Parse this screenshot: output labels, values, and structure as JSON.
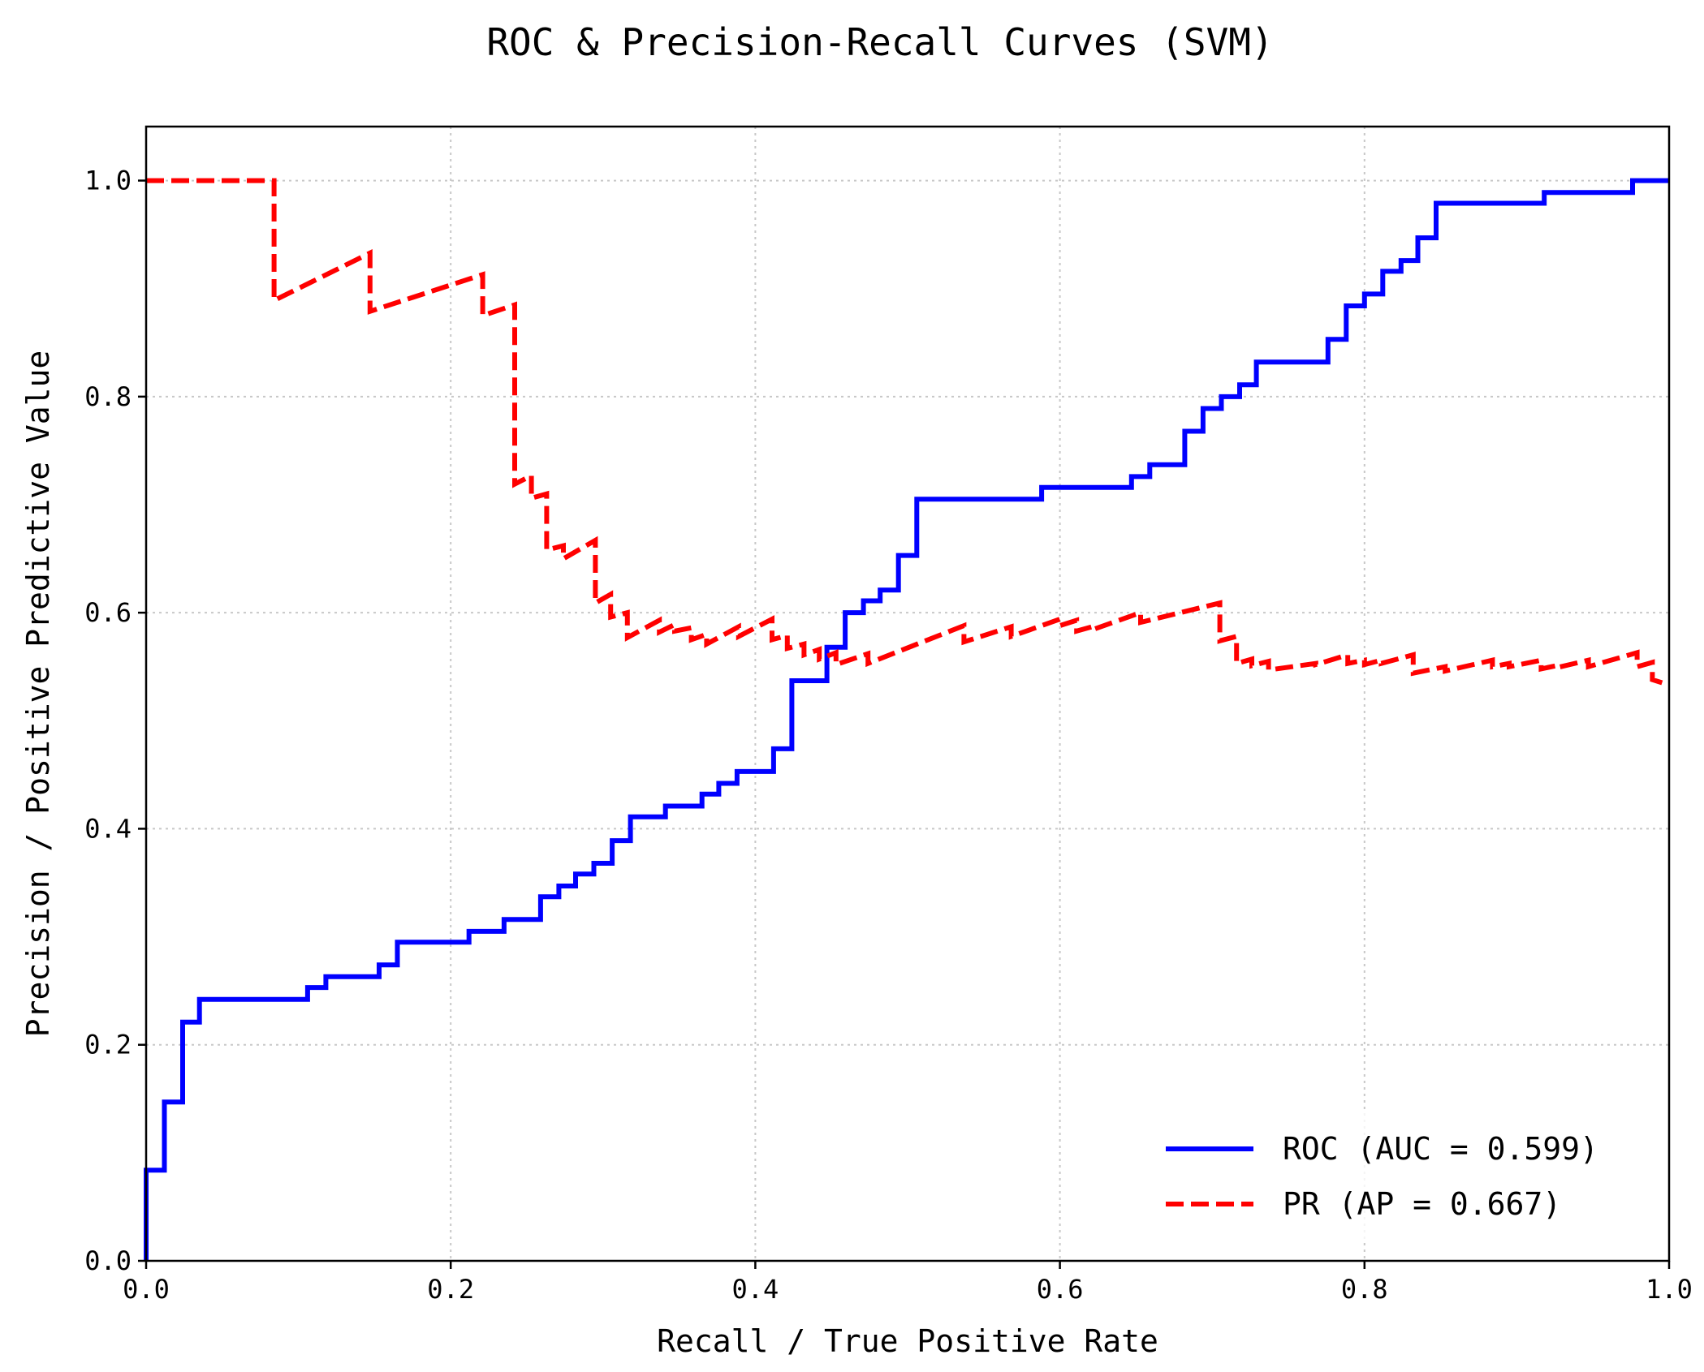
{
  "chart_data": {
    "type": "line",
    "title": "ROC & Precision-Recall Curves (SVM)",
    "xlabel": "Recall / True Positive Rate",
    "ylabel": "Precision / Positive Predictive Value",
    "xlim": [
      0,
      1
    ],
    "ylim": [
      0,
      1.05
    ],
    "xticks": [
      "0.0",
      "0.2",
      "0.4",
      "0.6",
      "0.8",
      "1.0"
    ],
    "yticks": [
      "0.0",
      "0.2",
      "0.4",
      "0.6",
      "0.8",
      "1.0"
    ],
    "grid": true,
    "legend_position": "lower-right",
    "series": [
      {
        "name": "ROC (AUC = 0.599)",
        "color": "#0000ff",
        "style": "solid",
        "points": [
          [
            0.0,
            0.0
          ],
          [
            0.0,
            0.084
          ],
          [
            0.012,
            0.084
          ],
          [
            0.012,
            0.147
          ],
          [
            0.024,
            0.147
          ],
          [
            0.024,
            0.221
          ],
          [
            0.035,
            0.221
          ],
          [
            0.035,
            0.242
          ],
          [
            0.106,
            0.242
          ],
          [
            0.106,
            0.253
          ],
          [
            0.118,
            0.253
          ],
          [
            0.118,
            0.263
          ],
          [
            0.153,
            0.263
          ],
          [
            0.153,
            0.274
          ],
          [
            0.165,
            0.274
          ],
          [
            0.165,
            0.295
          ],
          [
            0.212,
            0.295
          ],
          [
            0.212,
            0.305
          ],
          [
            0.235,
            0.305
          ],
          [
            0.235,
            0.316
          ],
          [
            0.259,
            0.316
          ],
          [
            0.259,
            0.337
          ],
          [
            0.271,
            0.337
          ],
          [
            0.271,
            0.347
          ],
          [
            0.282,
            0.347
          ],
          [
            0.282,
            0.358
          ],
          [
            0.294,
            0.358
          ],
          [
            0.294,
            0.368
          ],
          [
            0.306,
            0.368
          ],
          [
            0.306,
            0.389
          ],
          [
            0.318,
            0.389
          ],
          [
            0.318,
            0.411
          ],
          [
            0.341,
            0.411
          ],
          [
            0.341,
            0.421
          ],
          [
            0.365,
            0.421
          ],
          [
            0.365,
            0.432
          ],
          [
            0.376,
            0.432
          ],
          [
            0.376,
            0.442
          ],
          [
            0.388,
            0.442
          ],
          [
            0.388,
            0.453
          ],
          [
            0.412,
            0.453
          ],
          [
            0.412,
            0.474
          ],
          [
            0.424,
            0.474
          ],
          [
            0.424,
            0.537
          ],
          [
            0.447,
            0.537
          ],
          [
            0.447,
            0.568
          ],
          [
            0.459,
            0.568
          ],
          [
            0.459,
            0.6
          ],
          [
            0.471,
            0.6
          ],
          [
            0.471,
            0.611
          ],
          [
            0.482,
            0.611
          ],
          [
            0.482,
            0.621
          ],
          [
            0.494,
            0.621
          ],
          [
            0.494,
            0.653
          ],
          [
            0.506,
            0.653
          ],
          [
            0.506,
            0.705
          ],
          [
            0.588,
            0.705
          ],
          [
            0.588,
            0.716
          ],
          [
            0.647,
            0.716
          ],
          [
            0.647,
            0.726
          ],
          [
            0.659,
            0.726
          ],
          [
            0.659,
            0.737
          ],
          [
            0.682,
            0.737
          ],
          [
            0.682,
            0.768
          ],
          [
            0.694,
            0.768
          ],
          [
            0.694,
            0.789
          ],
          [
            0.706,
            0.789
          ],
          [
            0.706,
            0.8
          ],
          [
            0.718,
            0.8
          ],
          [
            0.718,
            0.811
          ],
          [
            0.729,
            0.811
          ],
          [
            0.729,
            0.832
          ],
          [
            0.776,
            0.832
          ],
          [
            0.776,
            0.853
          ],
          [
            0.788,
            0.853
          ],
          [
            0.788,
            0.884
          ],
          [
            0.8,
            0.884
          ],
          [
            0.8,
            0.895
          ],
          [
            0.812,
            0.895
          ],
          [
            0.812,
            0.916
          ],
          [
            0.824,
            0.916
          ],
          [
            0.824,
            0.926
          ],
          [
            0.835,
            0.926
          ],
          [
            0.835,
            0.947
          ],
          [
            0.847,
            0.947
          ],
          [
            0.847,
            0.979
          ],
          [
            0.918,
            0.979
          ],
          [
            0.918,
            0.989
          ],
          [
            0.976,
            0.989
          ],
          [
            0.976,
            1.0
          ],
          [
            1.0,
            1.0
          ]
        ]
      },
      {
        "name": "PR (AP = 0.667)",
        "color": "#ff0000",
        "style": "dashed",
        "points": [
          [
            0.0,
            1.0
          ],
          [
            0.084,
            1.0
          ],
          [
            0.084,
            0.889
          ],
          [
            0.147,
            0.933
          ],
          [
            0.147,
            0.879
          ],
          [
            0.221,
            0.913
          ],
          [
            0.221,
            0.875
          ],
          [
            0.242,
            0.885
          ],
          [
            0.242,
            0.719
          ],
          [
            0.253,
            0.727
          ],
          [
            0.253,
            0.706
          ],
          [
            0.263,
            0.71
          ],
          [
            0.263,
            0.658
          ],
          [
            0.274,
            0.662
          ],
          [
            0.274,
            0.65
          ],
          [
            0.295,
            0.667
          ],
          [
            0.295,
            0.609
          ],
          [
            0.305,
            0.617
          ],
          [
            0.305,
            0.596
          ],
          [
            0.316,
            0.6
          ],
          [
            0.316,
            0.577
          ],
          [
            0.337,
            0.593
          ],
          [
            0.337,
            0.582
          ],
          [
            0.347,
            0.589
          ],
          [
            0.347,
            0.583
          ],
          [
            0.358,
            0.586
          ],
          [
            0.358,
            0.575
          ],
          [
            0.368,
            0.58
          ],
          [
            0.368,
            0.571
          ],
          [
            0.389,
            0.587
          ],
          [
            0.389,
            0.578
          ],
          [
            0.411,
            0.594
          ],
          [
            0.411,
            0.575
          ],
          [
            0.421,
            0.579
          ],
          [
            0.421,
            0.567
          ],
          [
            0.432,
            0.571
          ],
          [
            0.432,
            0.561
          ],
          [
            0.442,
            0.566
          ],
          [
            0.442,
            0.557
          ],
          [
            0.453,
            0.563
          ],
          [
            0.453,
            0.552
          ],
          [
            0.474,
            0.562
          ],
          [
            0.474,
            0.553
          ],
          [
            0.537,
            0.588
          ],
          [
            0.537,
            0.573
          ],
          [
            0.568,
            0.587
          ],
          [
            0.568,
            0.578
          ],
          [
            0.6,
            0.594
          ],
          [
            0.6,
            0.588
          ],
          [
            0.611,
            0.593
          ],
          [
            0.611,
            0.583
          ],
          [
            0.621,
            0.587
          ],
          [
            0.621,
            0.584
          ],
          [
            0.653,
            0.6
          ],
          [
            0.653,
            0.591
          ],
          [
            0.705,
            0.609
          ],
          [
            0.705,
            0.574
          ],
          [
            0.716,
            0.578
          ],
          [
            0.716,
            0.553
          ],
          [
            0.726,
            0.557
          ],
          [
            0.726,
            0.551
          ],
          [
            0.737,
            0.555
          ],
          [
            0.737,
            0.547
          ],
          [
            0.768,
            0.553
          ],
          [
            0.768,
            0.552
          ],
          [
            0.789,
            0.561
          ],
          [
            0.789,
            0.553
          ],
          [
            0.8,
            0.556
          ],
          [
            0.8,
            0.552
          ],
          [
            0.811,
            0.556
          ],
          [
            0.811,
            0.553
          ],
          [
            0.832,
            0.561
          ],
          [
            0.832,
            0.544
          ],
          [
            0.853,
            0.55
          ],
          [
            0.853,
            0.546
          ],
          [
            0.884,
            0.556
          ],
          [
            0.884,
            0.55
          ],
          [
            0.895,
            0.553
          ],
          [
            0.895,
            0.55
          ],
          [
            0.916,
            0.556
          ],
          [
            0.916,
            0.548
          ],
          [
            0.926,
            0.551
          ],
          [
            0.926,
            0.549
          ],
          [
            0.947,
            0.556
          ],
          [
            0.947,
            0.55
          ],
          [
            0.979,
            0.563
          ],
          [
            0.979,
            0.55
          ],
          [
            0.989,
            0.554
          ],
          [
            0.989,
            0.538
          ],
          [
            1.0,
            0.533
          ]
        ]
      }
    ]
  }
}
